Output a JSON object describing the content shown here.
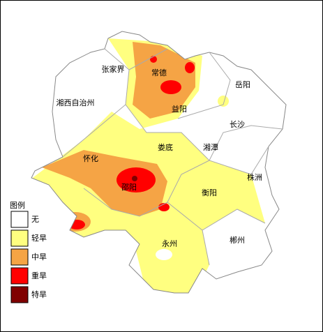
{
  "map": {
    "labels": [
      "张家界",
      "常德",
      "岳阳",
      "益阳",
      "湘西自治州",
      "长沙",
      "娄底",
      "湘潭",
      "怀化",
      "邵阳",
      "衡阳",
      "株洲",
      "永州",
      "郴州"
    ]
  },
  "legend": {
    "title": "图例",
    "items": [
      {
        "label": "无",
        "color": "#ffffff"
      },
      {
        "label": "轻旱",
        "color": "#ffff80"
      },
      {
        "label": "中旱",
        "color": "#f5a445"
      },
      {
        "label": "重旱",
        "color": "#ff0000"
      },
      {
        "label": "特旱",
        "color": "#800000"
      }
    ]
  }
}
